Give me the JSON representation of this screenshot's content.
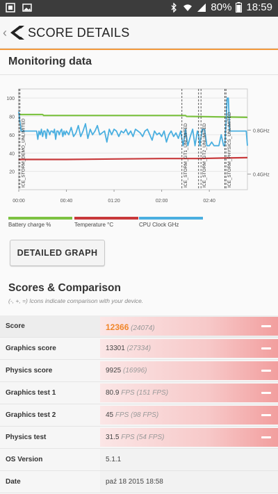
{
  "status_bar": {
    "battery_percent": "80%",
    "time": "18:59"
  },
  "header": {
    "title": "SCORE DETAILS"
  },
  "monitoring": {
    "title": "Monitoring data",
    "button_label": "DETAILED GRAPH"
  },
  "chart_data": {
    "type": "line",
    "y_ticks": [
      "20",
      "40",
      "60",
      "80",
      "100"
    ],
    "x_ticks": [
      "00:00",
      "00:40",
      "01:20",
      "02:00",
      "02:40"
    ],
    "right_ticks": [
      "0.8GHz",
      "0.4GHz"
    ],
    "ylim": [
      0,
      110
    ],
    "xlim": [
      0,
      192
    ],
    "segments": [
      "ICE_STORM_DEMO_UNLIMITED",
      "ICE_STORM_GT1_UNLIMITED",
      "ICE_STORM_GT2_UNLIMITED",
      "ICE_STORM_PHYSICS_UNLIMITED"
    ],
    "segment_starts": [
      1,
      137,
      151,
      173
    ],
    "segment_ends": [
      0,
      137,
      153,
      174
    ],
    "series": [
      {
        "name": "Battery charge %",
        "color": "#7dc242",
        "x": [
          0,
          20,
          21,
          140,
          141,
          192
        ],
        "y": [
          82,
          82,
          81,
          81,
          80,
          79
        ]
      },
      {
        "name": "Temperature °C",
        "color": "#c8393b",
        "x": [
          0,
          40,
          80,
          120,
          150,
          170,
          192
        ],
        "y": [
          33,
          33,
          33.5,
          34,
          34,
          34.5,
          35
        ]
      },
      {
        "name": "CPU Clock GHz",
        "color": "#4aafe0",
        "x": [
          0,
          1,
          2,
          3,
          15,
          16,
          17,
          18,
          19,
          20,
          21,
          22,
          23,
          24,
          25,
          26,
          27,
          28,
          29,
          30,
          31,
          32,
          33,
          34,
          35,
          36,
          37,
          38,
          39,
          40,
          42,
          44,
          46,
          48,
          50,
          52,
          54,
          56,
          58,
          60,
          62,
          64,
          66,
          68,
          70,
          72,
          74,
          76,
          78,
          80,
          82,
          84,
          86,
          88,
          90,
          92,
          94,
          96,
          98,
          100,
          102,
          104,
          106,
          108,
          110,
          112,
          114,
          116,
          118,
          120,
          122,
          124,
          126,
          128,
          130,
          132,
          134,
          136,
          137,
          138,
          140,
          142,
          144,
          146,
          148,
          150,
          151,
          152,
          154,
          156,
          158,
          160,
          162,
          164,
          166,
          168,
          170,
          172,
          173,
          174,
          175,
          176,
          177,
          178,
          180,
          182,
          184,
          186,
          188,
          190,
          191,
          192
        ],
        "y": [
          85,
          74,
          64,
          64,
          64,
          55,
          64,
          60,
          66,
          58,
          64,
          64,
          56,
          66,
          64,
          60,
          64,
          64,
          62,
          66,
          55,
          64,
          64,
          60,
          64,
          66,
          58,
          64,
          60,
          64,
          60,
          68,
          58,
          62,
          70,
          58,
          64,
          72,
          56,
          66,
          60,
          64,
          70,
          60,
          62,
          64,
          52,
          66,
          60,
          66,
          64,
          58,
          64,
          62,
          66,
          60,
          64,
          58,
          66,
          64,
          62,
          58,
          64,
          66,
          60,
          54,
          64,
          60,
          62,
          58,
          64,
          52,
          60,
          64,
          58,
          62,
          56,
          64,
          55,
          48,
          66,
          48,
          58,
          66,
          48,
          64,
          60,
          48,
          66,
          66,
          48,
          48,
          52,
          48,
          48,
          48,
          60,
          48,
          48,
          72,
          100,
          100,
          64,
          64,
          64,
          64,
          64,
          64,
          64,
          64,
          64,
          48
        ]
      }
    ]
  },
  "scores": {
    "title": "Scores & Comparison",
    "subtitle": "(-, +, =) Icons indicate comparison with your device.",
    "rows": [
      {
        "label": "Score",
        "value": "12366",
        "ref": "(24074)",
        "bar": 1.0
      },
      {
        "label": "Graphics score",
        "value": "13301",
        "ref": "(27334)",
        "bar": 1.0
      },
      {
        "label": "Physics score",
        "value": "9925",
        "ref": "(16996)",
        "bar": 1.0
      },
      {
        "label": "Graphics test 1",
        "value": "80.9",
        "unit": "FPS",
        "ref": "(151 FPS)",
        "bar": 1.0
      },
      {
        "label": "Graphics test 2",
        "value": "45",
        "unit": "FPS",
        "ref": "(98 FPS)",
        "bar": 1.0
      },
      {
        "label": "Physics test",
        "value": "31.5",
        "unit": "FPS",
        "ref": "(54 FPS)",
        "bar": 1.0
      },
      {
        "label": "OS Version",
        "value": "5.1.1"
      },
      {
        "label": "Date",
        "value": "paź 18 2015 18:58"
      }
    ]
  },
  "colors": {
    "accent": "#f39a3d",
    "score_orange": "#f0862a"
  }
}
